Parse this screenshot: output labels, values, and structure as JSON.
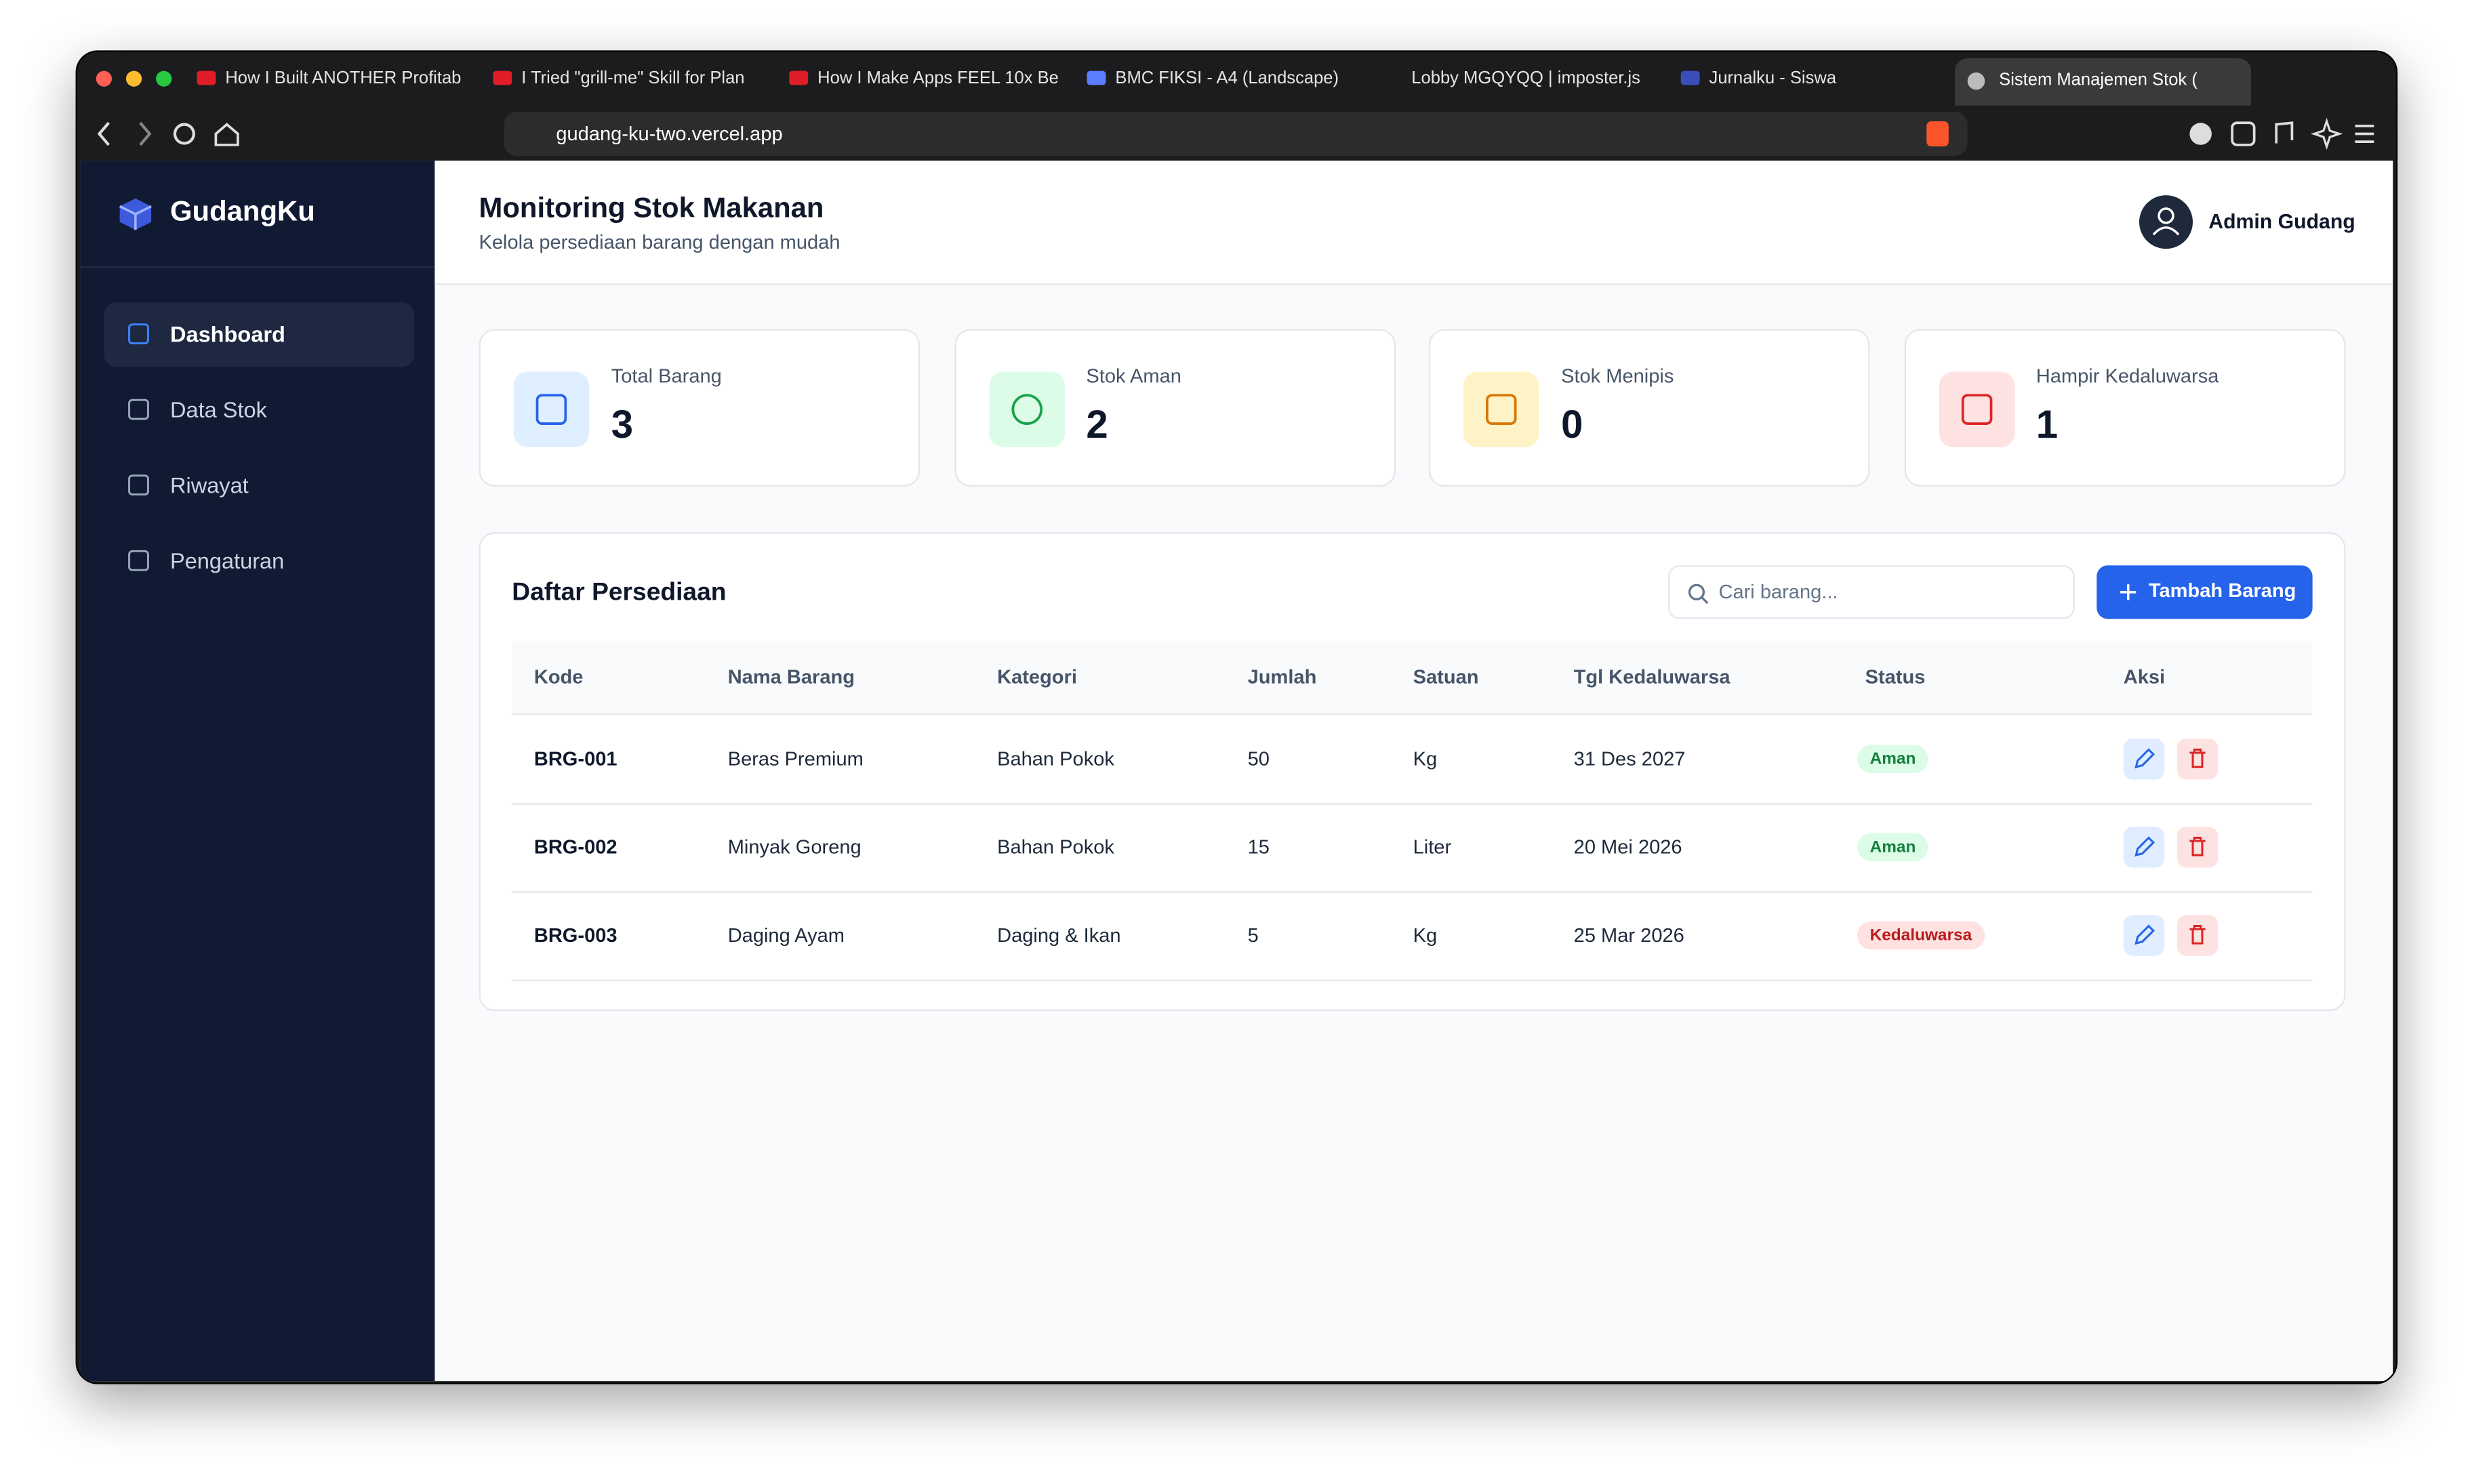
{
  "browser": {
    "tabs": [
      "How I Built ANOTHER Profitab",
      "I Tried \"grill-me\" Skill for Plan",
      "How I Make Apps FEEL 10x Be",
      "BMC FIKSI - A4 (Landscape)",
      "Lobby MGQYQQ | imposter.js",
      "Jurnalku - Siswa",
      "Sistem Manajemen Stok ("
    ],
    "url": "gudang-ku-two.vercel.app"
  },
  "sidebar": {
    "brand": "GudangKu",
    "nav": [
      "Dashboard",
      "Data Stok",
      "Riwayat",
      "Pengaturan"
    ]
  },
  "header": {
    "title": "Monitoring Stok Makanan",
    "subtitle": "Kelola persediaan barang dengan mudah",
    "user": "Admin Gudang"
  },
  "stats": [
    {
      "label": "Total Barang",
      "value": 3,
      "color": "#2563eb",
      "bg": "#e0efff"
    },
    {
      "label": "Stok Aman",
      "value": 2,
      "color": "#16a34a",
      "bg": "#dcfce7"
    },
    {
      "label": "Stok Menipis",
      "value": 0,
      "color": "#d97706",
      "bg": "#fef3c7"
    },
    {
      "label": "Hampir Kedaluwarsa",
      "value": 1,
      "color": "#dc2626",
      "bg": "#fee2e2"
    }
  ],
  "inventory": {
    "title": "Daftar Persediaan",
    "search_placeholder": "Cari barang...",
    "add_button": "Tambah Barang",
    "columns": [
      "Kode",
      "Nama Barang",
      "Kategori",
      "Jumlah",
      "Satuan",
      "Tgl Kedaluwarsa",
      "Status",
      "Aksi"
    ],
    "rows": [
      {
        "cells": [
          "BRG-001",
          "Beras Premium",
          "Bahan Pokok",
          50,
          "Kg",
          "31 Des 2027",
          "Aman"
        ],
        "status_color": "#15803d",
        "status_bg": "#dcfce7"
      },
      {
        "cells": [
          "BRG-002",
          "Minyak Goreng",
          "Bahan Pokok",
          15,
          "Liter",
          "20 Mei 2026",
          "Aman"
        ],
        "status_color": "#15803d",
        "status_bg": "#dcfce7"
      },
      {
        "cells": [
          "BRG-003",
          "Daging Ayam",
          "Daging & Ikan",
          5,
          "Kg",
          "25 Mar 2026",
          "Kedaluwarsa"
        ],
        "status_color": "#b91c1c",
        "status_bg": "#fee2e2"
      }
    ]
  }
}
